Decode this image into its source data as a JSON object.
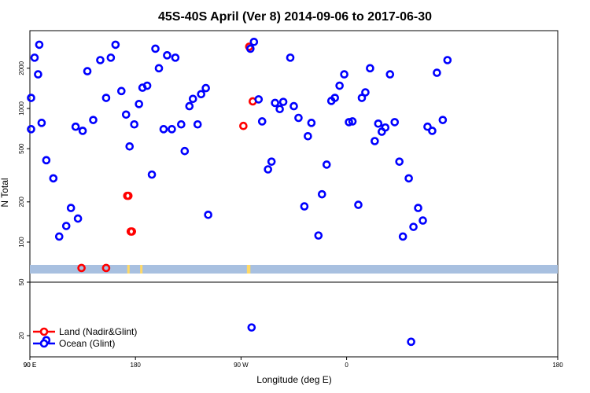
{
  "chart_data": {
    "type": "scatter",
    "title": "45S-40S April (Ver 8)   2014-09-06 to 2017-06-30",
    "xlabel": "Longitude (deg E)",
    "ylabel": "N Total",
    "x_tick_labels": [
      "90 E",
      "180",
      "90 W",
      "0",
      "90 E",
      "180"
    ],
    "upper_y_tick_labels": [
      "100",
      "200",
      "500",
      "1000",
      "2000"
    ],
    "lower_y_tick_labels": [
      "20",
      "50"
    ],
    "upper_y_scale": "log",
    "grid": false,
    "legend": {
      "position": "bottom-left",
      "items": [
        {
          "label": "Land (Nadir&Glint)",
          "color": "#ff0000"
        },
        {
          "label": "Ocean (Glint)",
          "color": "#0000ff"
        }
      ]
    },
    "colors": {
      "land": "#ff0000",
      "ocean": "#0000ff",
      "band_ocean": "#a8c0e0",
      "band_land": "#ffd966"
    },
    "series": [
      {
        "name": "Land (Nadir&Glint)",
        "key": "land",
        "points": [
          {
            "x": 134,
            "y": 64
          },
          {
            "x": 174,
            "y": 222
          },
          {
            "x": 177,
            "y": 120
          },
          {
            "x": -88,
            "y": 740
          },
          {
            "x": -83,
            "y": 2900
          },
          {
            "x": -80,
            "y": 1130
          },
          {
            "x": 155,
            "y": 64
          },
          {
            "x": 173,
            "y": 222
          },
          {
            "x": 176,
            "y": 120
          }
        ]
      },
      {
        "name": "Ocean (Glint)",
        "key": "ocean",
        "points": [
          {
            "x": 91,
            "y": 700
          },
          {
            "x": 97,
            "y": 1800
          },
          {
            "x": 100,
            "y": 780
          },
          {
            "x": 104,
            "y": 410
          },
          {
            "x": 110,
            "y": 300
          },
          {
            "x": 115,
            "y": 110
          },
          {
            "x": 121,
            "y": 132
          },
          {
            "x": 125,
            "y": 180
          },
          {
            "x": 129,
            "y": 730
          },
          {
            "x": 131,
            "y": 150
          },
          {
            "x": 135,
            "y": 680
          },
          {
            "x": 139,
            "y": 1900
          },
          {
            "x": 144,
            "y": 820
          },
          {
            "x": 150,
            "y": 2300
          },
          {
            "x": 155,
            "y": 1200
          },
          {
            "x": 159,
            "y": 2400
          },
          {
            "x": 163,
            "y": 3000
          },
          {
            "x": 168,
            "y": 1350
          },
          {
            "x": 172,
            "y": 900
          },
          {
            "x": 175,
            "y": 520
          },
          {
            "x": 179,
            "y": 760
          },
          {
            "x": -177,
            "y": 1080
          },
          {
            "x": -174,
            "y": 1430
          },
          {
            "x": -170,
            "y": 1480
          },
          {
            "x": -166,
            "y": 320
          },
          {
            "x": -163,
            "y": 2800
          },
          {
            "x": -160,
            "y": 2000
          },
          {
            "x": -156,
            "y": 700
          },
          {
            "x": -153,
            "y": 2500
          },
          {
            "x": -149,
            "y": 700
          },
          {
            "x": -146,
            "y": 2400
          },
          {
            "x": -141,
            "y": 760
          },
          {
            "x": -138,
            "y": 480
          },
          {
            "x": -134,
            "y": 1040
          },
          {
            "x": -131,
            "y": 1180
          },
          {
            "x": -127,
            "y": 760
          },
          {
            "x": -124,
            "y": 1280
          },
          {
            "x": -120,
            "y": 1420
          },
          {
            "x": -118,
            "y": 160
          },
          {
            "x": -82,
            "y": 2800
          },
          {
            "x": -79,
            "y": 3150
          },
          {
            "x": -75,
            "y": 1170
          },
          {
            "x": -72,
            "y": 800
          },
          {
            "x": -67,
            "y": 350
          },
          {
            "x": -64,
            "y": 400
          },
          {
            "x": -61,
            "y": 1100
          },
          {
            "x": -57,
            "y": 990
          },
          {
            "x": -54,
            "y": 1120
          },
          {
            "x": -48,
            "y": 2400
          },
          {
            "x": -45,
            "y": 1040
          },
          {
            "x": -41,
            "y": 850
          },
          {
            "x": -36,
            "y": 185
          },
          {
            "x": -33,
            "y": 620
          },
          {
            "x": -30,
            "y": 780
          },
          {
            "x": -24,
            "y": 112
          },
          {
            "x": -21,
            "y": 228
          },
          {
            "x": -17,
            "y": 380
          },
          {
            "x": -13,
            "y": 1140
          },
          {
            "x": -10,
            "y": 1200
          },
          {
            "x": -6,
            "y": 1480
          },
          {
            "x": -2,
            "y": 1800
          },
          {
            "x": 2,
            "y": 790
          },
          {
            "x": 5,
            "y": 800
          },
          {
            "x": 10,
            "y": 190
          },
          {
            "x": 13,
            "y": 1200
          },
          {
            "x": 16,
            "y": 1320
          },
          {
            "x": 20,
            "y": 2000
          },
          {
            "x": 24,
            "y": 570
          },
          {
            "x": 27,
            "y": 770
          },
          {
            "x": 30,
            "y": 670
          },
          {
            "x": 33,
            "y": 720
          },
          {
            "x": 37,
            "y": 1800
          },
          {
            "x": 41,
            "y": 790
          },
          {
            "x": 45,
            "y": 400
          },
          {
            "x": 48,
            "y": 110
          },
          {
            "x": 53,
            "y": 300
          },
          {
            "x": 57,
            "y": 130
          },
          {
            "x": 61,
            "y": 180
          },
          {
            "x": 65,
            "y": 145
          },
          {
            "x": 69,
            "y": 730
          },
          {
            "x": 73,
            "y": 680
          },
          {
            "x": 77,
            "y": 1850
          },
          {
            "x": 82,
            "y": 820
          },
          {
            "x": 86,
            "y": 2300
          },
          {
            "x": 91,
            "y": 1200
          },
          {
            "x": 94,
            "y": 2400
          },
          {
            "x": 98,
            "y": 3000
          }
        ]
      }
    ],
    "lower_panel_points": [
      {
        "series": "ocean",
        "x": 104,
        "y": 18.5
      },
      {
        "series": "ocean",
        "x": -81,
        "y": 23
      },
      {
        "series": "ocean",
        "x": 55,
        "y": 18
      }
    ],
    "band": {
      "label_shown": false,
      "land_segments": [
        [
          -176,
          -175
        ],
        [
          -85,
          -82
        ],
        [
          173,
          174
        ]
      ]
    }
  }
}
